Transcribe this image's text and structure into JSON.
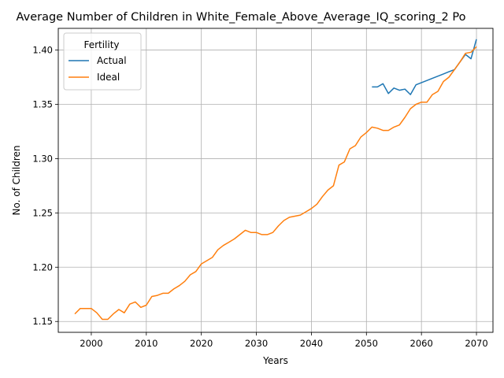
{
  "chart_data": {
    "type": "line",
    "title": "Average Number of Children in White_Female_Above_Average_IQ_scoring_2 Po",
    "xlabel": "Years",
    "ylabel": "No. of Children",
    "xlim": [
      1994,
      2073
    ],
    "ylim": [
      1.14,
      1.42
    ],
    "xticks": [
      2000,
      2010,
      2020,
      2030,
      2040,
      2050,
      2060,
      2070
    ],
    "yticks": [
      1.15,
      1.2,
      1.25,
      1.3,
      1.35,
      1.4
    ],
    "ytick_labels": [
      "1.15",
      "1.20",
      "1.25",
      "1.30",
      "1.35",
      "1.40"
    ],
    "grid": true,
    "legend": {
      "title": "Fertility",
      "placement": "top-left"
    },
    "series": [
      {
        "name": "Actual",
        "color": "#1f77b4",
        "x": [
          2051,
          2052,
          2053,
          2054,
          2055,
          2056,
          2057,
          2058,
          2059,
          2060,
          2061,
          2062,
          2063,
          2064,
          2065,
          2066,
          2067,
          2068,
          2069,
          2070
        ],
        "y": [
          1.366,
          1.366,
          1.369,
          1.36,
          1.365,
          1.363,
          1.364,
          1.359,
          1.368,
          1.37,
          1.372,
          1.374,
          1.376,
          1.378,
          1.38,
          1.382,
          1.389,
          1.396,
          1.392,
          1.41
        ]
      },
      {
        "name": "Ideal",
        "color": "#ff7f0e",
        "x": [
          1997,
          1998,
          1999,
          2000,
          2001,
          2002,
          2003,
          2004,
          2005,
          2006,
          2007,
          2008,
          2009,
          2010,
          2011,
          2012,
          2013,
          2014,
          2015,
          2016,
          2017,
          2018,
          2019,
          2020,
          2021,
          2022,
          2023,
          2024,
          2025,
          2026,
          2027,
          2028,
          2029,
          2030,
          2031,
          2032,
          2033,
          2034,
          2035,
          2036,
          2037,
          2038,
          2039,
          2040,
          2041,
          2042,
          2043,
          2044,
          2045,
          2046,
          2047,
          2048,
          2049,
          2050,
          2051,
          2052,
          2053,
          2054,
          2055,
          2056,
          2057,
          2058,
          2059,
          2060,
          2061,
          2062,
          2063,
          2064,
          2065,
          2066,
          2067,
          2068,
          2069,
          2070
        ],
        "y": [
          1.157,
          1.162,
          1.162,
          1.162,
          1.158,
          1.152,
          1.152,
          1.157,
          1.161,
          1.158,
          1.166,
          1.168,
          1.163,
          1.165,
          1.173,
          1.174,
          1.176,
          1.176,
          1.18,
          1.183,
          1.187,
          1.193,
          1.196,
          1.203,
          1.206,
          1.209,
          1.216,
          1.22,
          1.223,
          1.226,
          1.23,
          1.234,
          1.232,
          1.232,
          1.23,
          1.23,
          1.232,
          1.238,
          1.243,
          1.246,
          1.247,
          1.248,
          1.251,
          1.254,
          1.258,
          1.265,
          1.271,
          1.275,
          1.294,
          1.297,
          1.309,
          1.312,
          1.32,
          1.324,
          1.329,
          1.328,
          1.326,
          1.326,
          1.329,
          1.331,
          1.338,
          1.346,
          1.35,
          1.352,
          1.352,
          1.359,
          1.362,
          1.371,
          1.375,
          1.382,
          1.389,
          1.397,
          1.398,
          1.403
        ]
      }
    ]
  }
}
